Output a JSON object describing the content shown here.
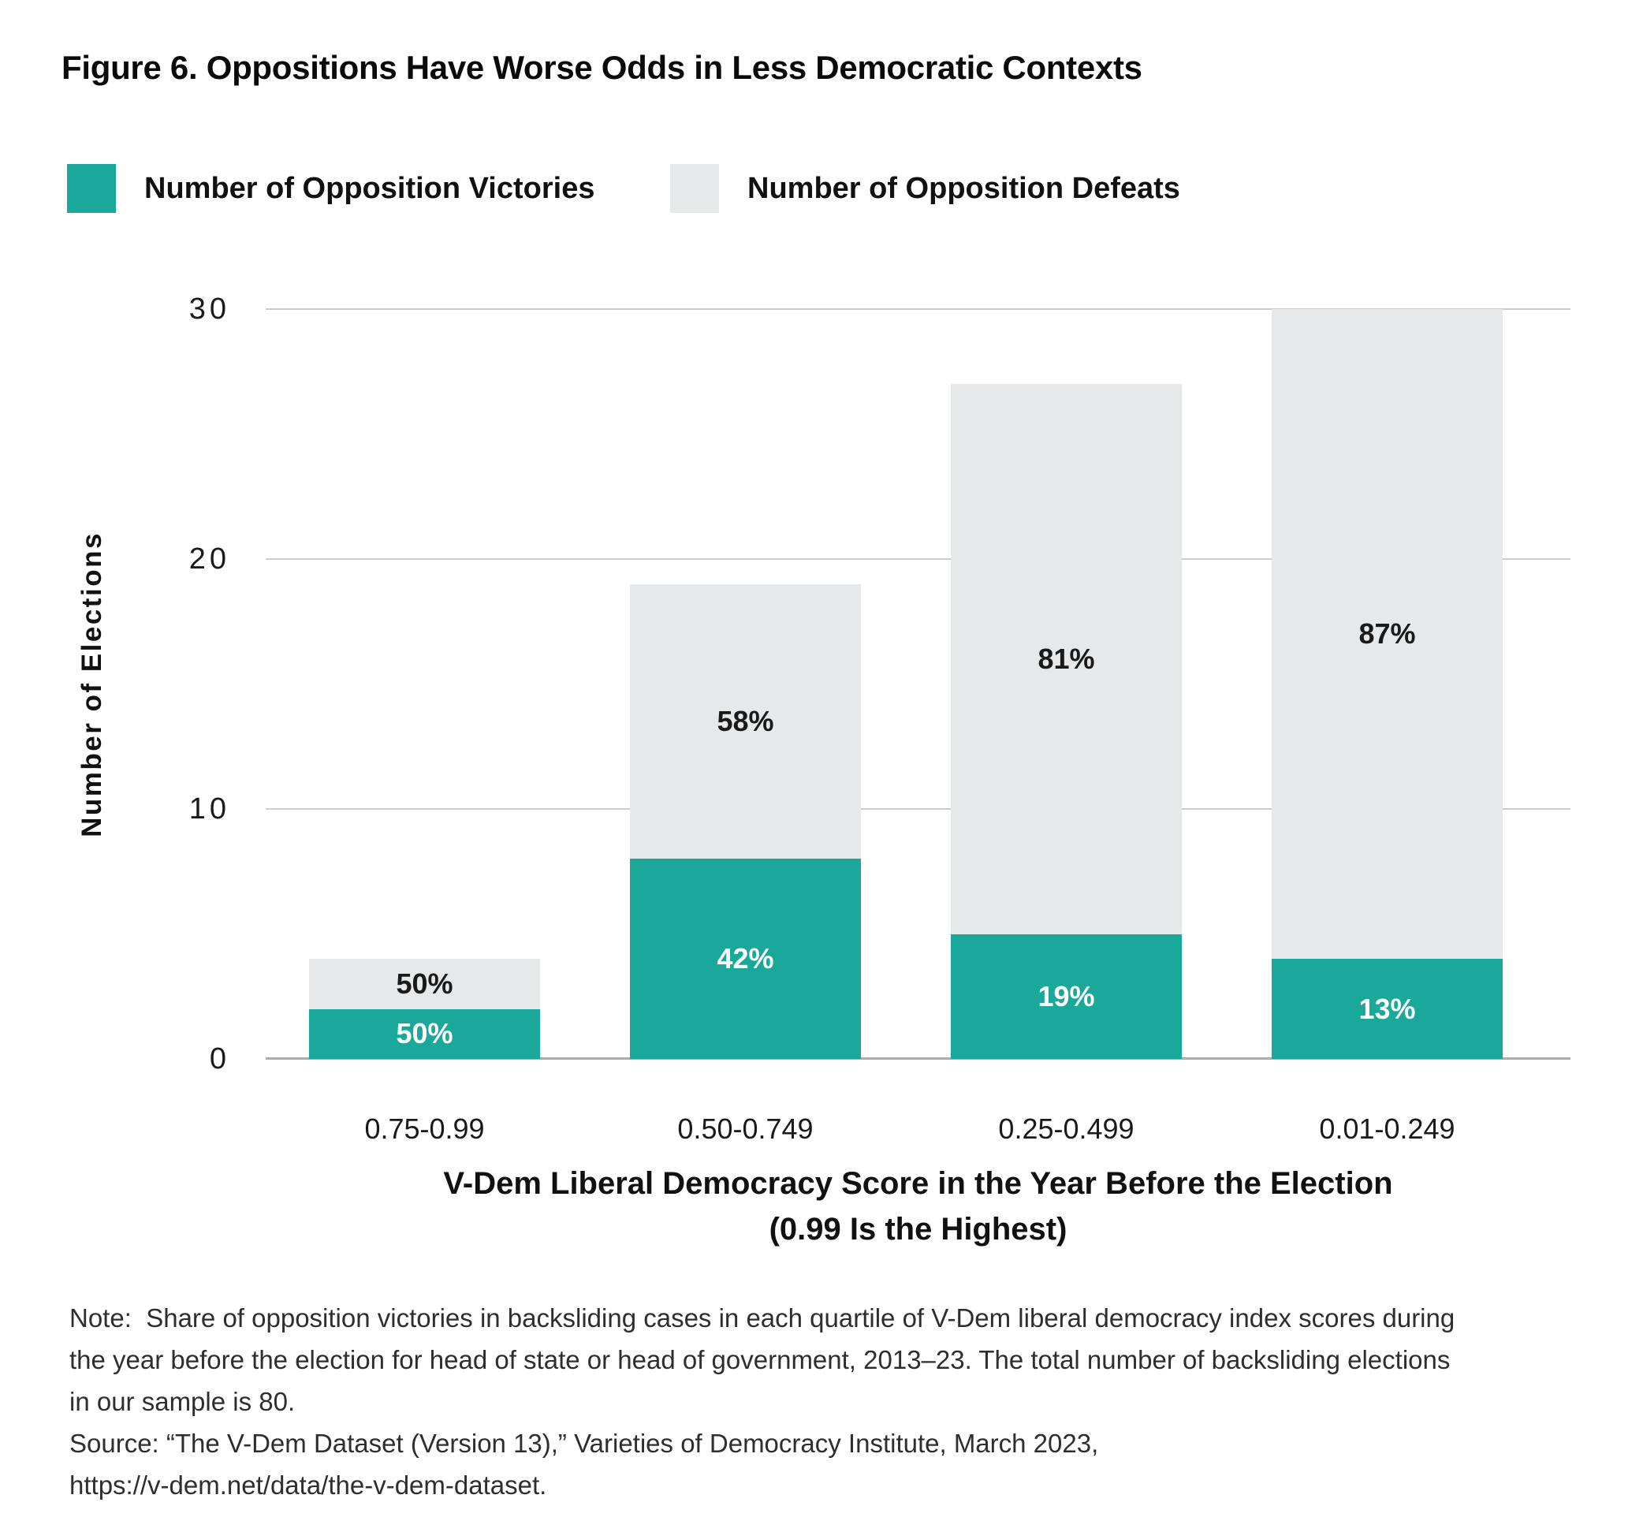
{
  "colors": {
    "teal": "#1AA89B",
    "bar_gray": "#E6E8E9",
    "gridline": "#CCCCCC",
    "baseline": "#ACACAC",
    "text_dark": "#1A1A1A",
    "note_text": "#2E2E2E"
  },
  "note": {
    "lines": [
      "Note:  Share of opposition victories in backsliding cases in each quartile of V-Dem liberal democracy index scores during",
      "the year before the election for head of state or head of government, 2013–23. The total number of backsliding elections",
      "in our sample is 80.",
      "Source: “The V-Dem Dataset (Version 13),” Varieties of Democracy Institute, March 2023,",
      "https://v-dem.net/data/the-v-dem-dataset."
    ]
  },
  "chart_data": {
    "type": "bar",
    "stacked": true,
    "title": "Figure 6. Oppositions Have Worse Odds in Less Democratic Contexts",
    "categories": [
      "0.75-0.99",
      "0.50-0.749",
      "0.25-0.499",
      "0.01-0.249"
    ],
    "series": [
      {
        "name": "Number of Opposition Victories",
        "color": "#1AA89B",
        "values": [
          2,
          8,
          5,
          4
        ],
        "percent_labels": [
          "50%",
          "42%",
          "19%",
          "13%"
        ]
      },
      {
        "name": "Number of Opposition Defeats",
        "color": "#E6E8E9",
        "values": [
          2,
          11,
          22,
          26
        ],
        "percent_labels": [
          "50%",
          "58%",
          "81%",
          "87%"
        ]
      }
    ],
    "bar_totals": [
      4,
      19,
      27,
      30
    ],
    "total_elections": 80,
    "ylabel": "Number of Elections",
    "xlabel_line1": "V-Dem Liberal Democracy Score in the Year Before the Election",
    "xlabel_line2": "(0.99 Is the Highest)",
    "ylim": [
      0,
      30
    ],
    "yticks": [
      0,
      10,
      20,
      30
    ],
    "grid": "horizontal",
    "legend_position": "top-left"
  }
}
